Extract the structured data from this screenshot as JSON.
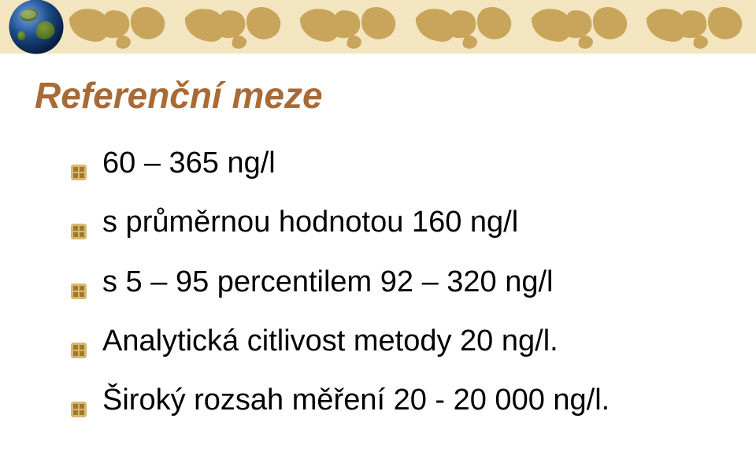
{
  "banner": {
    "background": "#f3e5c0",
    "map_tile_fill": "#c8a55a",
    "globe": {
      "ocean": "#1b4a86",
      "highlight": "#6ea2e8",
      "shadow": "#081e44",
      "land": "#7a9a3a",
      "land_shadow": "#4c6a1e"
    }
  },
  "bullet": {
    "fill": "#d8b872",
    "tile": "#a07a2c"
  },
  "title": "Referenční meze",
  "title_color": "#a86a36",
  "body_color": "#000000",
  "items": [
    "60 – 365 ng/l",
    "s průměrnou hodnotou 160 ng/l",
    "s 5 – 95 percentilem 92 – 320 ng/l",
    "Analytická citlivost metody  20 ng/l.",
    "Široký rozsah měření 20 - 20 000 ng/l."
  ]
}
